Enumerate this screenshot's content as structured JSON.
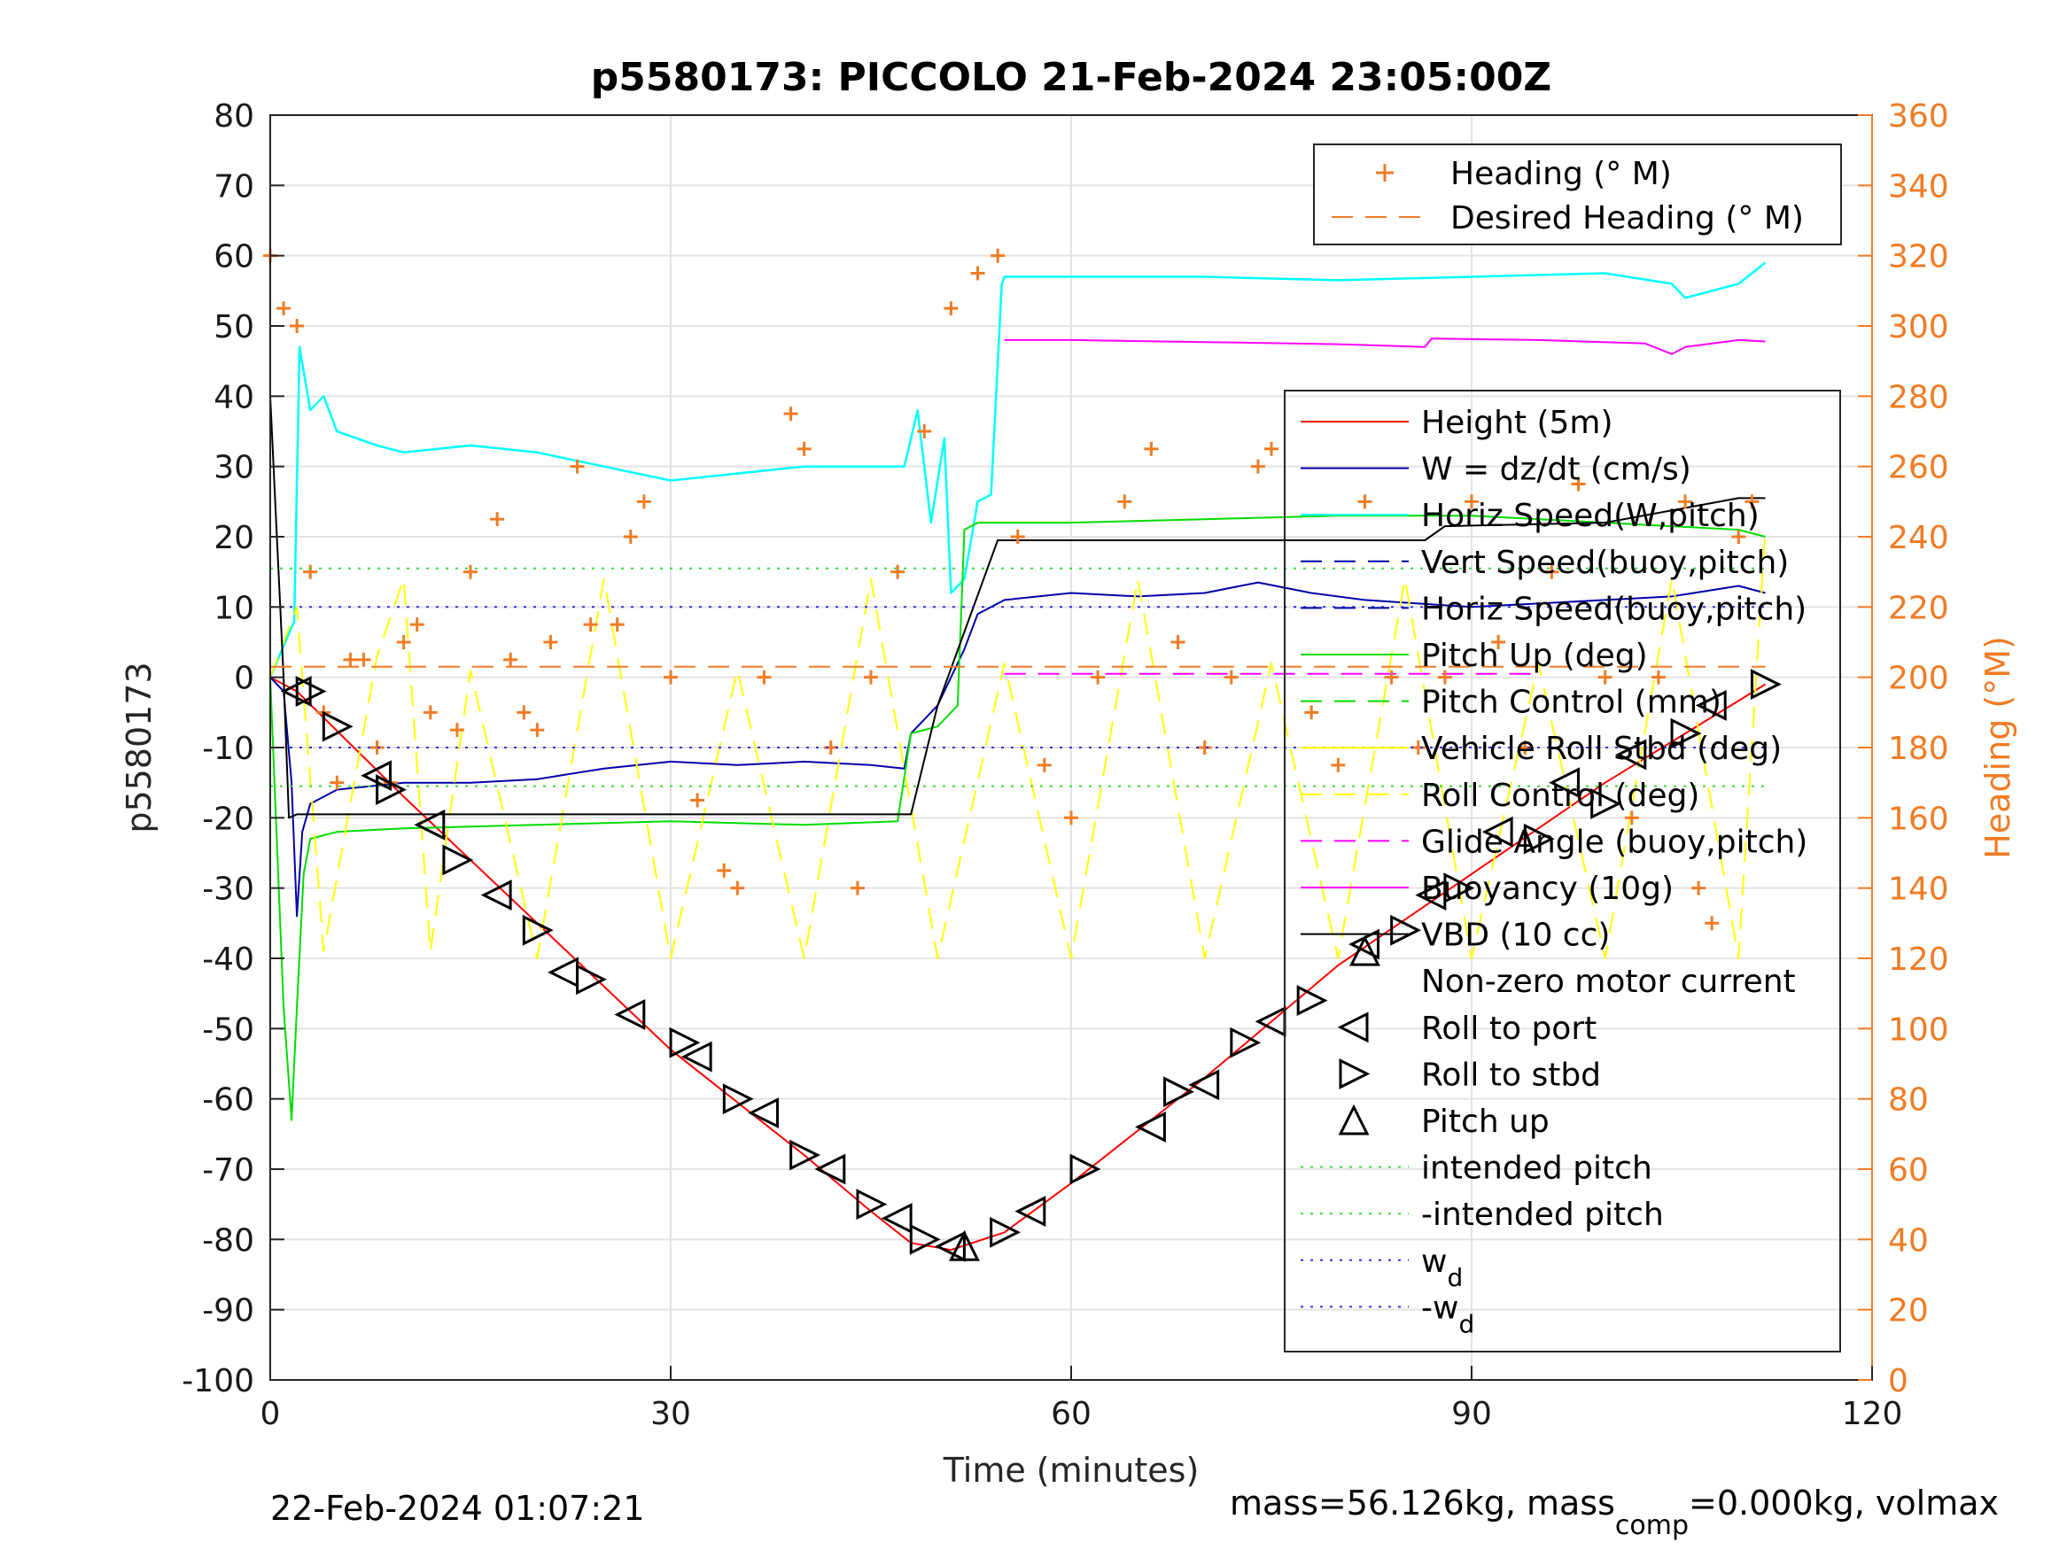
{
  "title": "p5580173: PICCOLO 21-Feb-2024 23:05:00Z",
  "footer": {
    "timestamp": "22-Feb-2024 01:07:21",
    "mass_text_a": "mass=56.126kg, mass",
    "mass_text_sub": "comp",
    "mass_text_b": "=0.000kg, volmax"
  },
  "chart_data": {
    "type": "line",
    "title": "p5580173: PICCOLO 21-Feb-2024 23:05:00Z",
    "xlabel": "Time (minutes)",
    "ylabel": "p5580173",
    "y2label": "Heading (°M)",
    "xlim": [
      0,
      120
    ],
    "ylim": [
      -100,
      80
    ],
    "y2lim": [
      0,
      360
    ],
    "xticks": [
      "0",
      "30",
      "60",
      "90",
      "120"
    ],
    "yticks": [
      "80",
      "70",
      "60",
      "50",
      "40",
      "30",
      "20",
      "10",
      "0",
      "-10",
      "-20",
      "-30",
      "-40",
      "-50",
      "-60",
      "-70",
      "-80",
      "-90",
      "-100"
    ],
    "y2ticks": [
      "360",
      "340",
      "320",
      "300",
      "280",
      "260",
      "240",
      "220",
      "200",
      "180",
      "160",
      "140",
      "120",
      "100",
      "80",
      "60",
      "40",
      "20",
      "0"
    ],
    "grid": true,
    "legend_upper": {
      "placement": "top-right",
      "entries": [
        "Heading (° M)",
        "Desired Heading (° M)"
      ]
    },
    "legend_main": {
      "placement": "right",
      "entries": [
        "Height (5m)",
        "W = dz/dt (cm/s)",
        "Horiz Speed(W,pitch)",
        "Vert Speed(buoy,pitch)",
        "Horiz Speed(buoy,pitch)",
        "Pitch Up (deg)",
        "Pitch Control (mm)",
        "Vehicle Roll Stbd (deg)",
        "Roll Control (deg)",
        "Glide Angle (buoy,pitch)",
        "Buoyancy (10g)",
        "VBD (10 cc)",
        "Non-zero motor current",
        "Roll to port",
        "Roll to stbd",
        "Pitch up",
        "intended pitch",
        "-intended pitch",
        "w",
        "-w"
      ],
      "subscripts": {
        "w": "d",
        "-w": "d"
      }
    },
    "colors": {
      "height": "#ff0000",
      "w": "#0000aa",
      "horiz_speed": "#00ffff",
      "pitch": "#00dd00",
      "roll": "#ffff00",
      "glide": "#ff00ff",
      "vbd": "#000000",
      "heading": "#f07b24",
      "intended": "#33dd33",
      "wd": "#3333dd"
    },
    "series": [
      {
        "name": "Height (5m)",
        "key": "height",
        "x": [
          0,
          2,
          10,
          20,
          30,
          40,
          45,
          48,
          51,
          55,
          60,
          70,
          80,
          90,
          100,
          106,
          112
        ],
        "y": [
          0,
          -2,
          -17,
          -35,
          -53,
          -68,
          -76,
          -80.5,
          -81.5,
          -79,
          -72,
          -57,
          -41,
          -28,
          -15,
          -8,
          -1
        ]
      },
      {
        "name": "W = dz/dt (cm/s)",
        "key": "w",
        "x": [
          0,
          1,
          1.6,
          2,
          2.4,
          3,
          5,
          10,
          15,
          20,
          25,
          30,
          35,
          40,
          45,
          47.5,
          48,
          50,
          52,
          53,
          55,
          60,
          65,
          70,
          74,
          78,
          82,
          86,
          90,
          95,
          100,
          105,
          110,
          112
        ],
        "y": [
          0,
          -2,
          -15,
          -34,
          -22,
          -18,
          -16,
          -15,
          -15,
          -14.5,
          -13,
          -12,
          -12.5,
          -12,
          -12.5,
          -13,
          -8,
          -4,
          4,
          9,
          11,
          12,
          11.5,
          12,
          13.5,
          12,
          11,
          10.5,
          10,
          10.5,
          11,
          11.5,
          13,
          12
        ]
      },
      {
        "name": "Horiz Speed(W,pitch)",
        "key": "horiz_speed",
        "x": [
          0,
          1.8,
          2.2,
          3,
          4,
          5,
          8,
          10,
          15,
          20,
          25,
          30,
          35,
          40,
          45,
          47.5,
          48.5,
          49.5,
          50.5,
          51,
          52,
          53,
          54,
          54.8,
          55,
          60,
          70,
          80,
          90,
          100,
          105,
          106,
          110,
          112
        ],
        "y": [
          0,
          8,
          47,
          38,
          40,
          35,
          33,
          32,
          33,
          32,
          30,
          28,
          29,
          30,
          30,
          30,
          38,
          22,
          34,
          12,
          14,
          25,
          26,
          56,
          57,
          57,
          57,
          56.5,
          57,
          57.5,
          56,
          54,
          56,
          59
        ]
      },
      {
        "name": "Pitch Up (deg)",
        "key": "pitch",
        "x": [
          0,
          1,
          1.6,
          2,
          2.5,
          3,
          5,
          10,
          20,
          30,
          40,
          47,
          48,
          50,
          51.5,
          52,
          53,
          55,
          60,
          70,
          80,
          90,
          100,
          110,
          112
        ],
        "y": [
          0,
          -47,
          -63,
          -47,
          -28,
          -23,
          -22,
          -21.5,
          -21,
          -20.5,
          -21,
          -20.5,
          -8,
          -7,
          -4,
          21,
          22,
          22,
          22,
          22.5,
          23,
          23,
          22,
          21,
          20
        ]
      },
      {
        "name": "Roll Control (deg)",
        "key": "roll",
        "x": [
          0,
          2,
          4,
          8,
          10,
          12,
          15,
          20,
          25,
          30,
          35,
          40,
          45,
          50,
          55,
          60,
          65,
          70,
          75,
          80,
          85,
          90,
          95,
          100,
          105,
          110,
          112
        ],
        "y": [
          0,
          10,
          -39,
          3,
          14,
          -39,
          1,
          -40,
          14,
          -40,
          1,
          -40,
          14,
          -40,
          2,
          -40,
          14,
          -40,
          2,
          -40,
          14,
          -40,
          2,
          -40,
          14,
          -40,
          21
        ]
      },
      {
        "name": "Glide Angle (buoy,pitch)",
        "key": "glide",
        "x": [
          55,
          95
        ],
        "y": [
          0.5,
          0.5
        ]
      },
      {
        "name": "Buoyancy (10g)",
        "key": "buoyancy",
        "x": [
          55,
          60,
          70,
          80,
          86.5,
          87,
          95,
          103,
          105,
          106,
          110,
          112
        ],
        "y": [
          48,
          48,
          47.7,
          47.4,
          47,
          48.2,
          48,
          47.5,
          46,
          47,
          48,
          47.8
        ]
      },
      {
        "name": "VBD (10 cc)",
        "key": "vbd",
        "x": [
          0,
          0.5,
          1,
          1.4,
          2,
          4,
          10,
          20,
          30,
          40,
          48,
          50,
          54.5,
          60,
          70,
          80,
          86.5,
          88,
          100,
          110,
          112
        ],
        "y": [
          40,
          20,
          0,
          -20,
          -19.5,
          -19.5,
          -19.5,
          -19.5,
          -19.5,
          -19.5,
          -19.5,
          -4,
          19.5,
          19.5,
          19.5,
          19.5,
          19.5,
          21.5,
          22,
          25.5,
          25.5
        ]
      },
      {
        "name": "Heading (° M)",
        "key": "heading",
        "axis": "right",
        "x": [
          0,
          1,
          2,
          3,
          4,
          5,
          6,
          7,
          8,
          9,
          10,
          11,
          12,
          14,
          15,
          17,
          18,
          19,
          20,
          21,
          23,
          24,
          26,
          27,
          28,
          30,
          32,
          34,
          35,
          37,
          39,
          40,
          42,
          44,
          45,
          47,
          49,
          51,
          53,
          54.5,
          56,
          58,
          60,
          62,
          64,
          66,
          68,
          70,
          72,
          74,
          75,
          78,
          80,
          82,
          84,
          86,
          88,
          90,
          92,
          94,
          96,
          98,
          100,
          102,
          104,
          106,
          107,
          108,
          110,
          111
        ],
        "y": [
          320,
          305,
          300,
          230,
          190,
          170,
          205,
          205,
          180,
          170,
          210,
          215,
          190,
          185,
          230,
          245,
          205,
          190,
          185,
          210,
          260,
          215,
          215,
          240,
          250,
          200,
          165,
          145,
          140,
          200,
          275,
          265,
          180,
          140,
          200,
          230,
          270,
          305,
          315,
          320,
          240,
          175,
          160,
          200,
          250,
          265,
          210,
          180,
          200,
          260,
          265,
          190,
          175,
          250,
          200,
          180,
          200,
          250,
          210,
          180,
          230,
          255,
          200,
          160,
          200,
          250,
          140,
          130,
          240,
          250
        ]
      },
      {
        "name": "Desired Heading (° M)",
        "key": "desired_heading",
        "axis": "right",
        "x": [
          0,
          112
        ],
        "y": [
          203,
          203
        ]
      },
      {
        "name": "intended pitch",
        "key": "intended",
        "x": [
          0,
          112
        ],
        "y": [
          15.5,
          15.5
        ]
      },
      {
        "name": "-intended pitch",
        "key": "intended_neg",
        "x": [
          0,
          112
        ],
        "y": [
          -15.5,
          -15.5
        ]
      },
      {
        "name": "w",
        "key": "wd",
        "x": [
          0,
          112
        ],
        "y": [
          10,
          10
        ]
      },
      {
        "name": "-w",
        "key": "wd_neg",
        "x": [
          0,
          112
        ],
        "y": [
          -10,
          -10
        ]
      }
    ],
    "markers": {
      "roll_to_port": {
        "x": [
          2,
          8,
          12,
          17,
          22,
          27,
          32,
          37,
          42,
          47,
          51,
          57,
          66,
          70,
          75,
          82,
          87,
          92,
          97,
          102,
          108
        ],
        "y": [
          -2,
          -14,
          -21,
          -31,
          -42,
          -48,
          -54,
          -62,
          -70,
          -77,
          -81,
          -76,
          -64,
          -58,
          -49,
          -38,
          -31,
          -22,
          -15,
          -11,
          -4
        ]
      },
      "roll_to_stbd": {
        "x": [
          3,
          5,
          9,
          14,
          20,
          24,
          31,
          35,
          40,
          45,
          49,
          55,
          61,
          68,
          73,
          78,
          85,
          89,
          95,
          100,
          106,
          112
        ],
        "y": [
          -2,
          -7,
          -16,
          -26,
          -36,
          -43,
          -52,
          -60,
          -68,
          -75,
          -80,
          -79,
          -70,
          -59,
          -52,
          -46,
          -36,
          -30,
          -23,
          -18,
          -8,
          -1
        ],
        "pitch_up": {
          "x": [
            52,
            82
          ],
          "y": [
            -81,
            -39
          ]
        }
      }
    }
  }
}
